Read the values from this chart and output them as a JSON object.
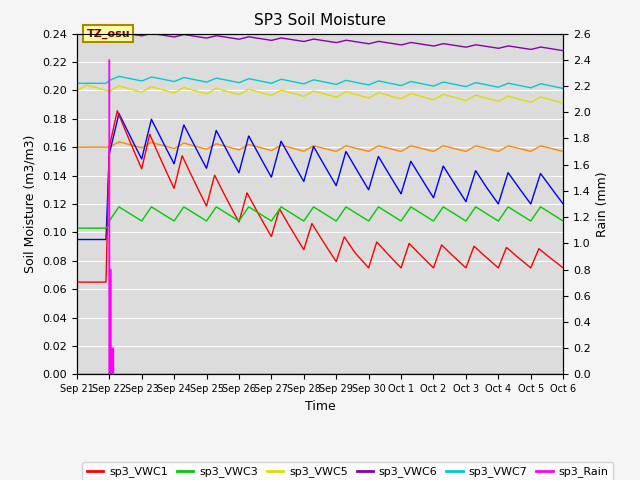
{
  "title": "SP3 Soil Moisture",
  "xlabel": "Time",
  "ylabel_left": "Soil Moisture (m3/m3)",
  "ylabel_right": "Rain (mm)",
  "ylim_left": [
    0.0,
    0.24
  ],
  "ylim_right": [
    0.0,
    2.6
  ],
  "plot_bg_color": "#dcdcdc",
  "fig_bg_color": "#f5f5f5",
  "grid_color": "#ffffff",
  "tz_label": "TZ_osu",
  "x_ticks": [
    "Sep 21",
    "Sep 22",
    "Sep 23",
    "Sep 24",
    "Sep 25",
    "Sep 26",
    "Sep 27",
    "Sep 28",
    "Sep 29",
    "Sep 30",
    "Oct 1",
    "Oct 2",
    "Oct 3",
    "Oct 4",
    "Oct 5",
    "Oct 6"
  ],
  "series_colors": {
    "sp3_VWC1": "#ff0000",
    "sp3_VWC2": "#0000ff",
    "sp3_VWC3": "#00cc00",
    "sp3_VWC4": "#ff8800",
    "sp3_VWC5": "#dddd00",
    "sp3_VWC6": "#8800aa",
    "sp3_VWC7": "#00cccc",
    "sp3_Rain": "#ff00ff"
  }
}
